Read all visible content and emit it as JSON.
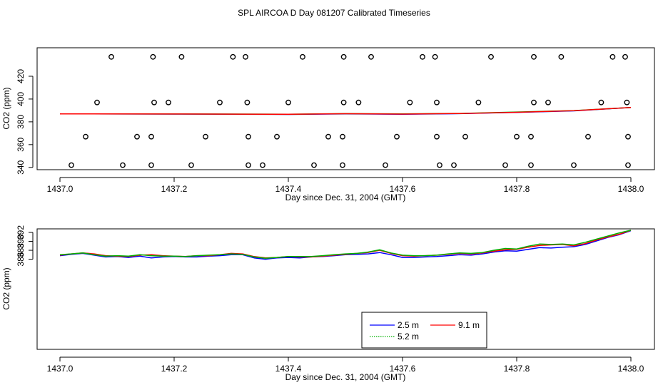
{
  "title": "SPL AIRCOA D  Day 081207  Calibrated Timeseries",
  "chart_data": [
    {
      "type": "scatter",
      "xlabel": "Day since Dec. 31, 2004 (GMT)",
      "ylabel": "CO2 (ppm)",
      "xlim": [
        1437.0,
        1438.0
      ],
      "ylim": [
        338,
        445
      ],
      "x_ticks": [
        "1437.0",
        "1437.2",
        "1437.4",
        "1437.6",
        "1437.8",
        "1438.0"
      ],
      "y_ticks": [
        "340",
        "360",
        "380",
        "400",
        "420"
      ],
      "y_tick_values": [
        340,
        360,
        380,
        400,
        420
      ],
      "grid": false,
      "points_x": [
        1437.02,
        1437.11,
        1437.16,
        1437.23,
        1437.33,
        1437.355,
        1437.445,
        1437.495,
        1437.57,
        1437.665,
        1437.69,
        1437.78,
        1437.825,
        1437.9,
        1437.995,
        1437.045,
        1437.135,
        1437.16,
        1437.255,
        1437.33,
        1437.38,
        1437.47,
        1437.495,
        1437.59,
        1437.66,
        1437.71,
        1437.8,
        1437.825,
        1437.925,
        1437.995,
        1437.065,
        1437.165,
        1437.19,
        1437.28,
        1437.328,
        1437.4,
        1437.497,
        1437.523,
        1437.613,
        1437.66,
        1437.733,
        1437.83,
        1437.855,
        1437.948,
        1437.993,
        1437.09,
        1437.163,
        1437.213,
        1437.303,
        1437.325,
        1437.425,
        1437.497,
        1437.545,
        1437.635,
        1437.657,
        1437.755,
        1437.83,
        1437.878,
        1437.968,
        1437.99
      ],
      "points_y": [
        342,
        342,
        342,
        342,
        342,
        342,
        342,
        342,
        342,
        342,
        342,
        342,
        342,
        342,
        342,
        367,
        367,
        367,
        367,
        367,
        367,
        367,
        367,
        367,
        367,
        367,
        367,
        367,
        367,
        367,
        397,
        397,
        397,
        397,
        397,
        397,
        397,
        397,
        397,
        397,
        397,
        397,
        397,
        397,
        397,
        437,
        437,
        437,
        437,
        437,
        437,
        437,
        437,
        437,
        437,
        437,
        437,
        437,
        437,
        437
      ],
      "series": [
        {
          "name": "2.5 m",
          "color": "#0000ff",
          "x": [
            1437.0,
            1437.2,
            1437.4,
            1437.5,
            1437.6,
            1437.7,
            1437.8,
            1437.9,
            1438.0
          ],
          "values": [
            387.0,
            386.8,
            386.5,
            387.0,
            386.6,
            387.2,
            388.3,
            389.6,
            392.6
          ]
        },
        {
          "name": "5.2 m",
          "color": "#00b000",
          "x": [
            1437.0,
            1437.2,
            1437.4,
            1437.5,
            1437.6,
            1437.7,
            1437.8,
            1437.9,
            1438.0
          ],
          "values": [
            387.0,
            386.9,
            386.7,
            387.2,
            387.0,
            387.4,
            388.6,
            389.9,
            392.6
          ]
        },
        {
          "name": "9.1 m",
          "color": "#ff0000",
          "x": [
            1437.0,
            1437.2,
            1437.4,
            1437.5,
            1437.6,
            1437.7,
            1437.8,
            1437.9,
            1438.0
          ],
          "values": [
            387.0,
            386.9,
            386.6,
            387.1,
            386.8,
            387.3,
            388.4,
            389.8,
            392.6
          ]
        }
      ]
    },
    {
      "type": "line",
      "xlabel": "Day since Dec. 31, 2004 (GMT)",
      "ylabel": "CO2 (ppm)",
      "xlim": [
        1437.0,
        1438.0
      ],
      "ylim": [
        365.8,
        392.8
      ],
      "x_ticks": [
        "1437.0",
        "1437.2",
        "1437.4",
        "1437.6",
        "1437.8",
        "1438.0"
      ],
      "y_ticks": [
        "386",
        "388",
        "390",
        "392"
      ],
      "y_tick_values": [
        386,
        388,
        390,
        392
      ],
      "grid": false,
      "legend_position": "bottom-center",
      "legend": [
        "2.5 m",
        "9.1 m",
        "5.2 m"
      ],
      "series": [
        {
          "name": "2.5 m",
          "color": "#0000ff",
          "x": [
            1437.0,
            1437.02,
            1437.04,
            1437.06,
            1437.08,
            1437.1,
            1437.12,
            1437.14,
            1437.16,
            1437.18,
            1437.2,
            1437.22,
            1437.24,
            1437.26,
            1437.28,
            1437.3,
            1437.32,
            1437.34,
            1437.36,
            1437.38,
            1437.4,
            1437.42,
            1437.44,
            1437.46,
            1437.48,
            1437.5,
            1437.52,
            1437.54,
            1437.56,
            1437.58,
            1437.6,
            1437.62,
            1437.64,
            1437.66,
            1437.68,
            1437.7,
            1437.72,
            1437.74,
            1437.76,
            1437.78,
            1437.8,
            1437.82,
            1437.84,
            1437.86,
            1437.88,
            1437.9,
            1437.92,
            1437.94,
            1437.96,
            1437.98,
            1438.0
          ],
          "values": [
            386.8,
            387.1,
            387.3,
            386.9,
            386.5,
            386.6,
            386.4,
            386.7,
            386.3,
            386.5,
            386.6,
            386.5,
            386.5,
            386.7,
            386.8,
            387.0,
            387.0,
            386.3,
            386.0,
            386.3,
            386.4,
            386.3,
            386.5,
            386.6,
            386.8,
            387.0,
            387.1,
            387.2,
            387.5,
            387.0,
            386.4,
            386.4,
            386.5,
            386.6,
            386.8,
            387.0,
            386.9,
            387.2,
            387.6,
            387.9,
            387.8,
            388.2,
            388.6,
            388.5,
            388.7,
            388.8,
            389.3,
            390.1,
            390.9,
            391.5,
            392.4
          ]
        },
        {
          "name": "9.1 m",
          "color": "#ff0000",
          "x": [
            1437.0,
            1437.02,
            1437.04,
            1437.06,
            1437.08,
            1437.1,
            1437.12,
            1437.14,
            1437.16,
            1437.18,
            1437.2,
            1437.22,
            1437.24,
            1437.26,
            1437.28,
            1437.3,
            1437.32,
            1437.34,
            1437.36,
            1437.38,
            1437.4,
            1437.42,
            1437.44,
            1437.46,
            1437.48,
            1437.5,
            1437.52,
            1437.54,
            1437.56,
            1437.58,
            1437.6,
            1437.62,
            1437.64,
            1437.66,
            1437.68,
            1437.7,
            1437.72,
            1437.74,
            1437.76,
            1437.78,
            1437.8,
            1437.82,
            1437.84,
            1437.86,
            1437.88,
            1437.9,
            1437.92,
            1437.94,
            1437.96,
            1437.98,
            1438.0
          ],
          "values": [
            386.9,
            387.2,
            387.4,
            387.2,
            386.8,
            386.7,
            386.6,
            386.9,
            387.0,
            386.8,
            386.7,
            386.6,
            386.8,
            386.8,
            387.0,
            387.3,
            387.2,
            386.6,
            386.3,
            386.4,
            386.6,
            386.5,
            386.5,
            386.7,
            386.9,
            387.1,
            387.3,
            387.5,
            388.0,
            387.3,
            386.8,
            386.7,
            386.8,
            386.9,
            387.1,
            387.3,
            387.2,
            387.4,
            387.8,
            388.1,
            388.2,
            388.7,
            389.1,
            389.2,
            389.3,
            389.0,
            389.5,
            390.3,
            391.0,
            391.6,
            392.5
          ]
        },
        {
          "name": "5.2 m",
          "color": "#00b000",
          "x": [
            1437.0,
            1437.02,
            1437.04,
            1437.06,
            1437.08,
            1437.1,
            1437.12,
            1437.14,
            1437.16,
            1437.18,
            1437.2,
            1437.22,
            1437.24,
            1437.26,
            1437.28,
            1437.3,
            1437.32,
            1437.34,
            1437.36,
            1437.38,
            1437.4,
            1437.42,
            1437.44,
            1437.46,
            1437.48,
            1437.5,
            1437.52,
            1437.54,
            1437.56,
            1437.58,
            1437.6,
            1437.62,
            1437.64,
            1437.66,
            1437.68,
            1437.7,
            1437.72,
            1437.74,
            1437.76,
            1437.78,
            1437.8,
            1437.82,
            1437.84,
            1437.86,
            1437.88,
            1437.9,
            1437.92,
            1437.94,
            1437.96,
            1437.98,
            1438.0
          ],
          "values": [
            387.0,
            387.2,
            387.4,
            387.0,
            386.7,
            386.8,
            386.7,
            387.0,
            386.8,
            386.7,
            386.7,
            386.6,
            386.8,
            386.9,
            387.0,
            387.2,
            387.1,
            386.5,
            386.2,
            386.4,
            386.6,
            386.6,
            386.6,
            386.8,
            387.0,
            387.2,
            387.3,
            387.6,
            388.1,
            387.4,
            386.9,
            386.8,
            386.8,
            386.9,
            387.2,
            387.4,
            387.3,
            387.5,
            388.0,
            388.4,
            388.3,
            388.9,
            389.4,
            389.3,
            389.4,
            389.2,
            389.8,
            390.5,
            391.2,
            391.9,
            392.5
          ]
        }
      ]
    }
  ]
}
